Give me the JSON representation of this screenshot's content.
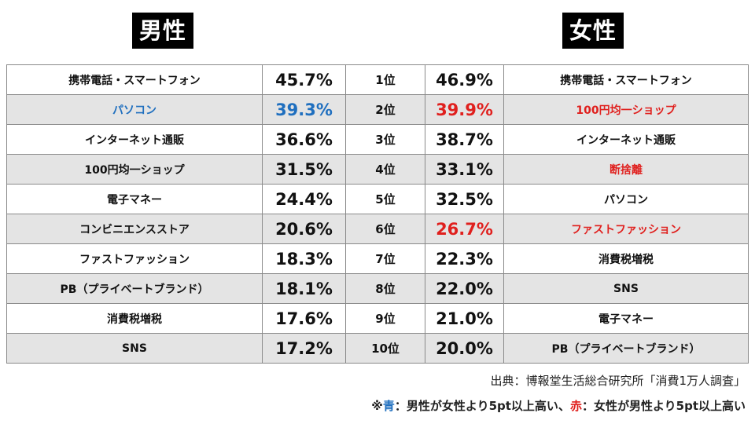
{
  "headers": {
    "male": "男性",
    "female": "女性"
  },
  "rows": [
    {
      "rank": "1位",
      "male_item": "携帯電話・スマートフォン",
      "male_pct": "45.7%",
      "female_pct": "46.9%",
      "female_item": "携帯電話・スマートフォン",
      "male_highlight": "",
      "female_highlight": ""
    },
    {
      "rank": "2位",
      "male_item": "パソコン",
      "male_pct": "39.3%",
      "female_pct": "39.9%",
      "female_item": "100円均一ショップ",
      "male_highlight": "blue",
      "female_highlight": "red"
    },
    {
      "rank": "3位",
      "male_item": "インターネット通販",
      "male_pct": "36.6%",
      "female_pct": "38.7%",
      "female_item": "インターネット通販",
      "male_highlight": "",
      "female_highlight": ""
    },
    {
      "rank": "4位",
      "male_item": "100円均一ショップ",
      "male_pct": "31.5%",
      "female_pct": "33.1%",
      "female_item": "断捨離",
      "male_highlight": "",
      "female_highlight": "red-item"
    },
    {
      "rank": "5位",
      "male_item": "電子マネー",
      "male_pct": "24.4%",
      "female_pct": "32.5%",
      "female_item": "パソコン",
      "male_highlight": "",
      "female_highlight": ""
    },
    {
      "rank": "6位",
      "male_item": "コンビニエンスストア",
      "male_pct": "20.6%",
      "female_pct": "26.7%",
      "female_item": "ファストファッション",
      "male_highlight": "",
      "female_highlight": "red"
    },
    {
      "rank": "7位",
      "male_item": "ファストファッション",
      "male_pct": "18.3%",
      "female_pct": "22.3%",
      "female_item": "消費税増税",
      "male_highlight": "",
      "female_highlight": ""
    },
    {
      "rank": "8位",
      "male_item": "PB（プライベートブランド）",
      "male_pct": "18.1%",
      "female_pct": "22.0%",
      "female_item": "SNS",
      "male_highlight": "",
      "female_highlight": ""
    },
    {
      "rank": "9位",
      "male_item": "消費税増税",
      "male_pct": "17.6%",
      "female_pct": "21.0%",
      "female_item": "電子マネー",
      "male_highlight": "",
      "female_highlight": ""
    },
    {
      "rank": "10位",
      "male_item": "SNS",
      "male_pct": "17.2%",
      "female_pct": "20.0%",
      "female_item": "PB（プライベートブランド）",
      "male_highlight": "",
      "female_highlight": ""
    }
  ],
  "source": "出典：博報堂生活総合研究所「消費1万人調査」",
  "note": {
    "prefix": "※",
    "blue_word": "青",
    "blue_desc": "：男性が女性より5pt以上高い、",
    "red_word": "赤",
    "red_desc": "：女性が男性より5pt以上高い"
  },
  "colors": {
    "blue": "#1f6fbf",
    "red": "#e0201e",
    "alt_row": "#e4e4e4",
    "header_bg": "#000000"
  }
}
